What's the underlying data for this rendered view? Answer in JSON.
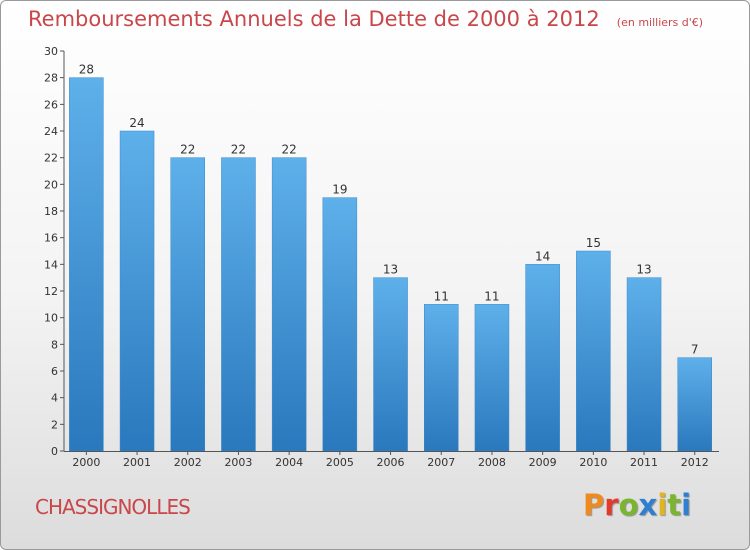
{
  "header": {
    "title": "Remboursements Annuels de la Dette de 2000 à 2012",
    "unit": "(en milliers d'€)"
  },
  "footer": {
    "commune": "CHASSIGNOLLES",
    "logo_text": "Proxiti"
  },
  "colors": {
    "title": "#c9464a",
    "bar_top": "#5eb0ea",
    "bar_bottom": "#2a78bd",
    "logo_letters": [
      "#f08a1c",
      "#e23b2d",
      "#79b62e",
      "#2f7fd1",
      "#e2b51e",
      "#79b62e",
      "#2f7fd1"
    ]
  },
  "chart_data": {
    "type": "bar",
    "title": "Remboursements Annuels de la Dette de 2000 à 2012",
    "xlabel": "",
    "ylabel": "",
    "categories": [
      "2000",
      "2001",
      "2002",
      "2003",
      "2004",
      "2005",
      "2006",
      "2007",
      "2008",
      "2009",
      "2010",
      "2011",
      "2012"
    ],
    "values": [
      28,
      24,
      22,
      22,
      22,
      19,
      13,
      11,
      11,
      14,
      15,
      13,
      7
    ],
    "ylim": [
      0,
      30
    ],
    "yticks": [
      0,
      2,
      4,
      6,
      8,
      10,
      12,
      14,
      16,
      18,
      20,
      22,
      24,
      26,
      28,
      30
    ],
    "grid": false,
    "legend": "none"
  }
}
